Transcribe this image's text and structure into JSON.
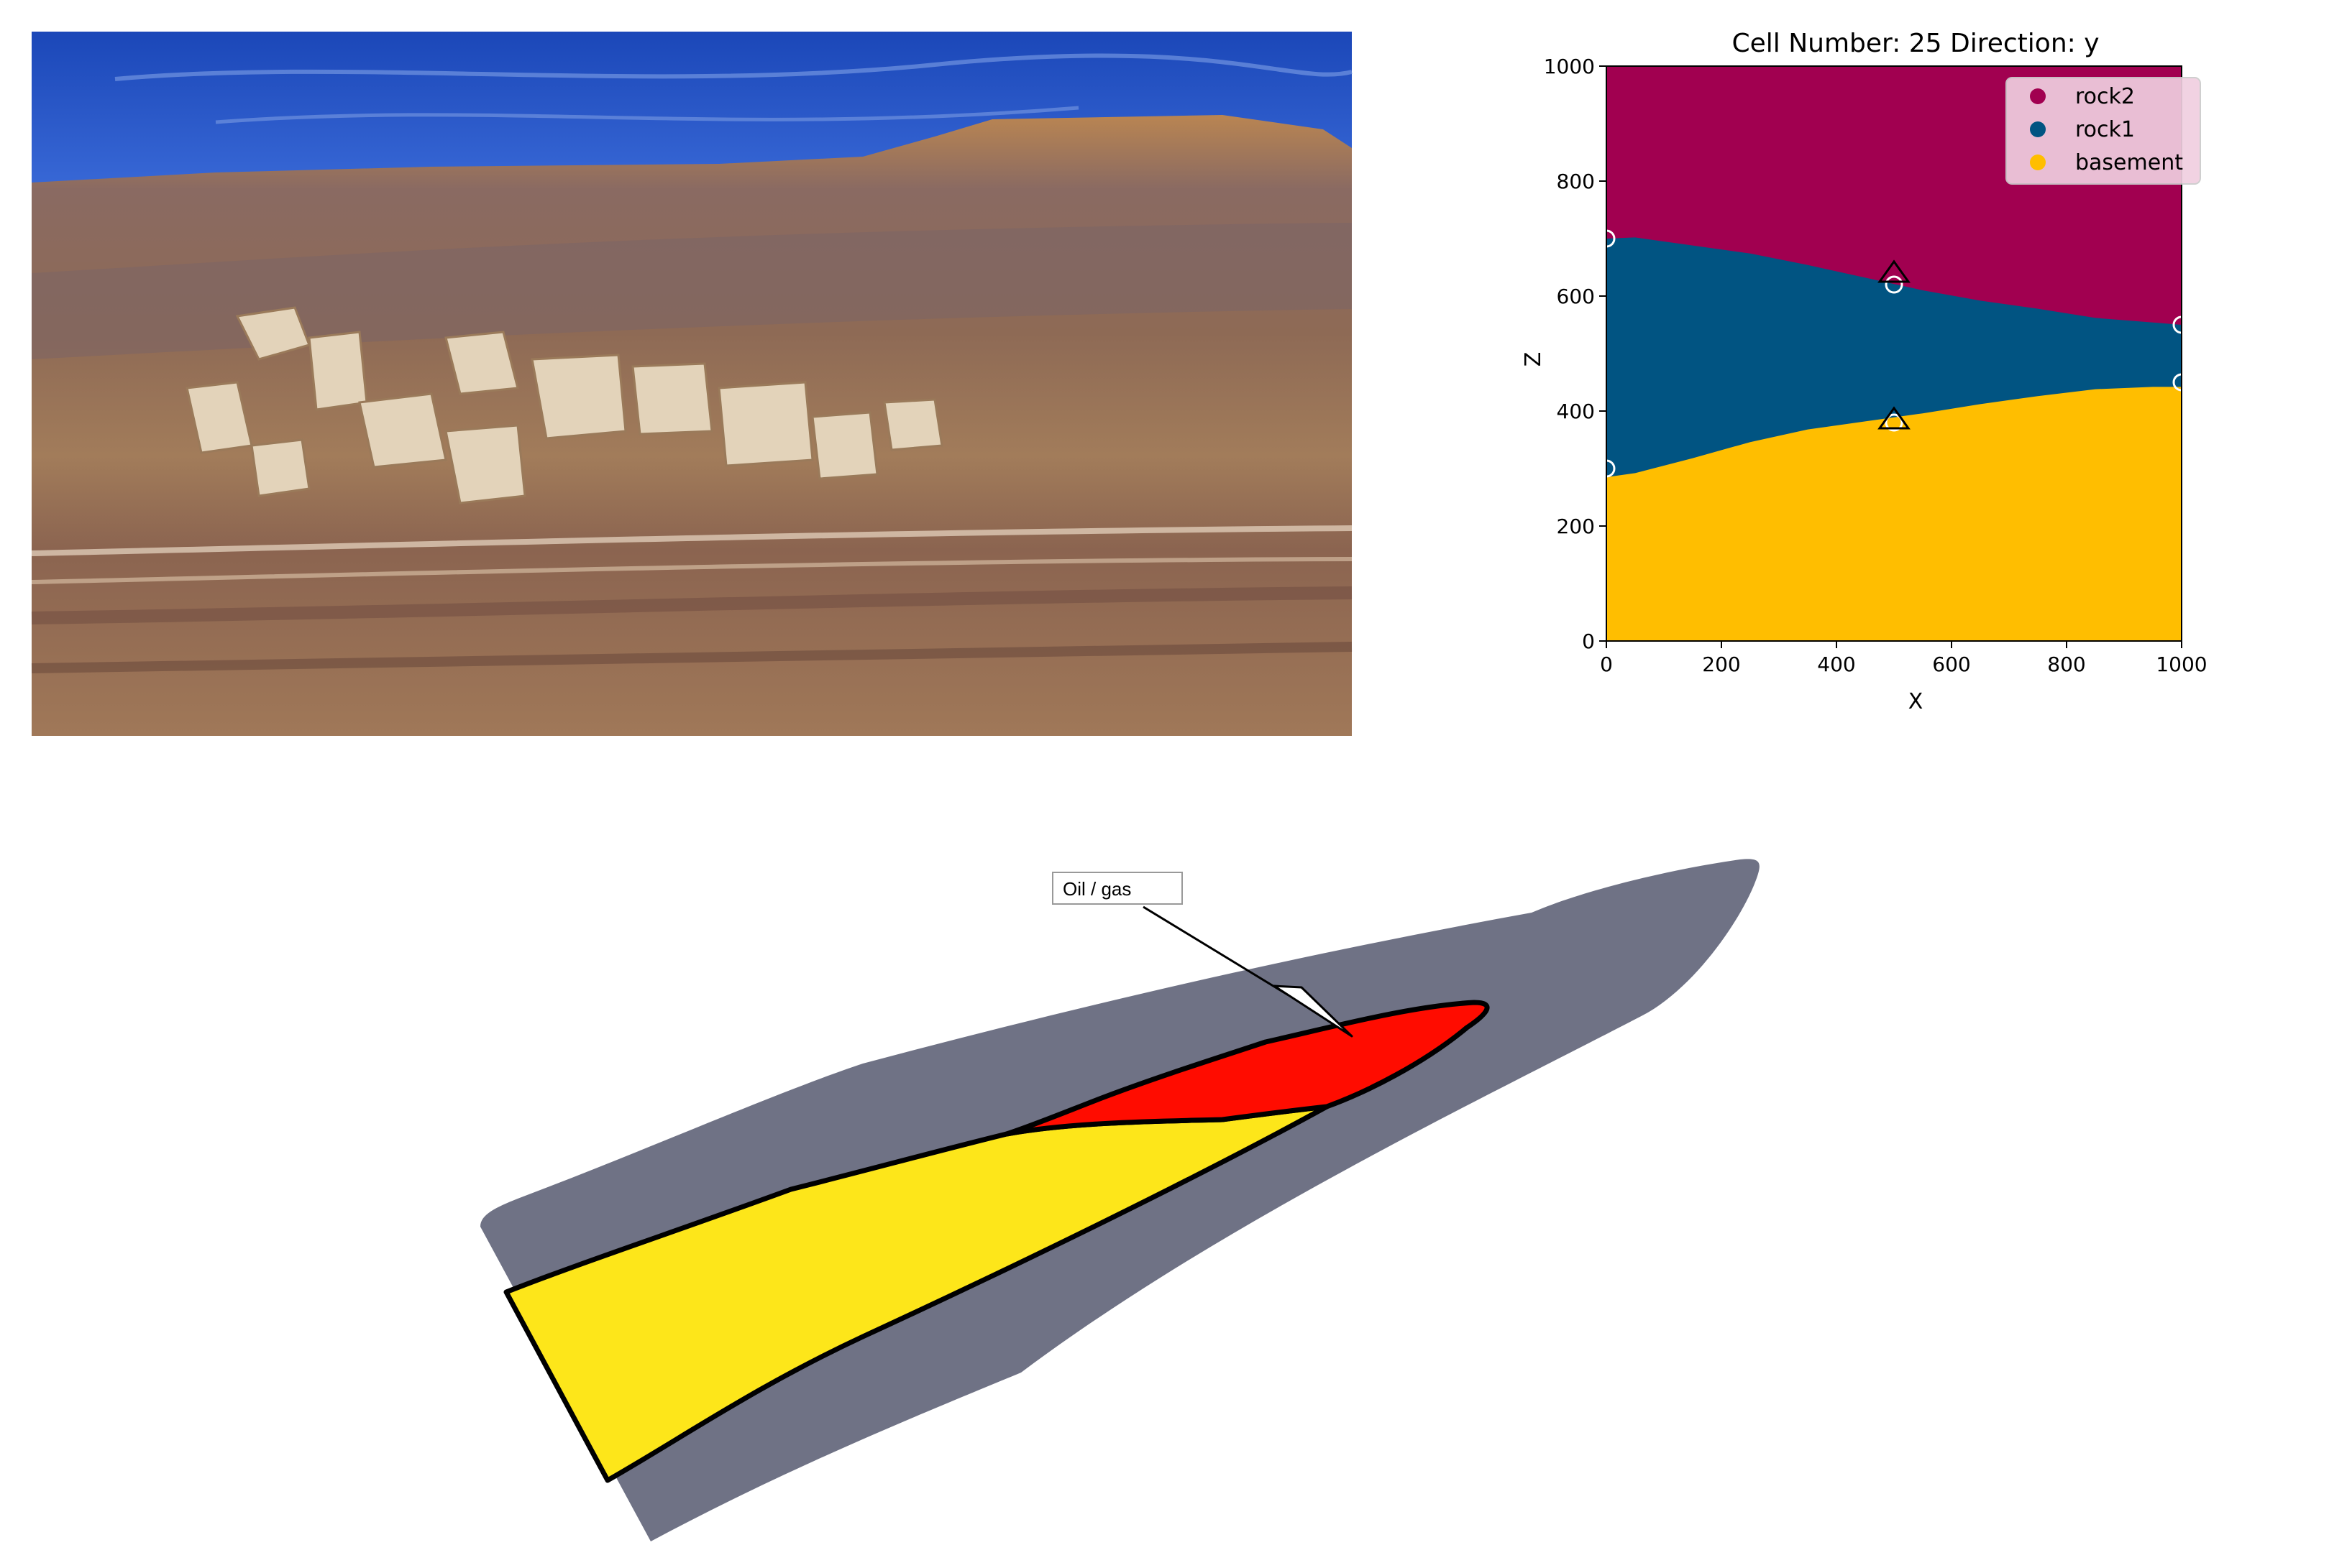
{
  "chart_data": {
    "type": "area",
    "title": "Cell Number: 25 Direction: y",
    "xlabel": "X",
    "ylabel": "Z",
    "xlim": [
      0,
      1000
    ],
    "ylim": [
      0,
      1000
    ],
    "xticks": [
      0,
      200,
      400,
      600,
      800,
      1000
    ],
    "yticks": [
      0,
      200,
      400,
      600,
      800,
      1000
    ],
    "legend_position": "top-right",
    "grid": false,
    "legend": [
      {
        "name": "rock2",
        "color": "#a10050"
      },
      {
        "name": "rock1",
        "color": "#015482"
      },
      {
        "name": "basement",
        "color": "#ffbe00"
      }
    ],
    "series": [
      {
        "name": "rock2",
        "color": "#a10050",
        "surface": {
          "x": [
            0,
            50,
            150,
            250,
            350,
            450,
            550,
            650,
            750,
            850,
            950,
            1000
          ],
          "z": [
            700,
            702,
            688,
            674,
            654,
            632,
            610,
            592,
            578,
            562,
            554,
            550
          ]
        }
      },
      {
        "name": "rock1",
        "color": "#015482",
        "surface": {
          "x": [
            0,
            50,
            150,
            250,
            350,
            450,
            550,
            650,
            750,
            850,
            950,
            1000
          ],
          "z": [
            285,
            292,
            318,
            346,
            368,
            382,
            396,
            412,
            426,
            438,
            442,
            442
          ]
        }
      },
      {
        "name": "basement",
        "color": "#ffbe00"
      }
    ],
    "points": {
      "surface_points": [
        {
          "x": 0,
          "z": 700
        },
        {
          "x": 500,
          "z": 620
        },
        {
          "x": 1000,
          "z": 550
        },
        {
          "x": 0,
          "z": 300
        },
        {
          "x": 500,
          "z": 380
        },
        {
          "x": 1000,
          "z": 450
        }
      ],
      "orientations": [
        {
          "x": 500,
          "z": 640
        },
        {
          "x": 500,
          "z": 385
        }
      ]
    }
  },
  "photo": {
    "colors": {
      "sky": "#1f52c4",
      "rock": "#b07d50",
      "dark_band": "#7a6462",
      "light_block": "#e6d6be"
    }
  },
  "diagram": {
    "label": "Oil / gas",
    "colors": {
      "host": "#6f7285",
      "reservoir": "#fde61a",
      "trap": "#ff0c00"
    }
  }
}
